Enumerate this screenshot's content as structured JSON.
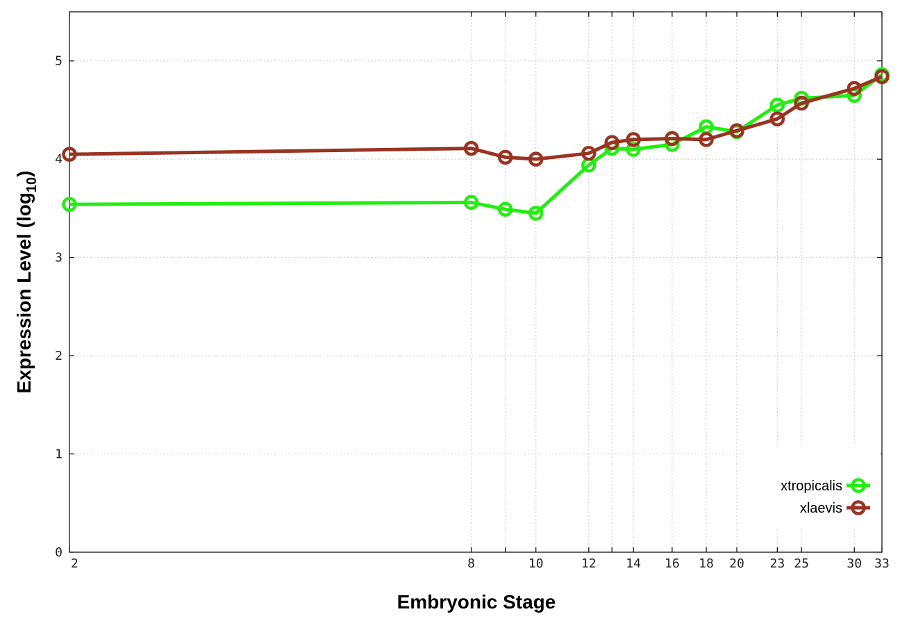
{
  "chart_data": {
    "type": "line",
    "xlabel": "Embryonic Stage",
    "ylabel_main": "Expression Level (log",
    "ylabel_sub": "10",
    "ylabel_close": ")",
    "x_ticks": [
      "2",
      "8",
      "9",
      "10",
      "12",
      "13",
      "14",
      "16",
      "18",
      "20",
      "23",
      "25",
      "30",
      "33"
    ],
    "x_tick_labels_shown": [
      "2",
      "8",
      "10",
      "12",
      "14",
      "16",
      "18",
      "20",
      "23",
      "25",
      "30",
      "33"
    ],
    "y_ticks": [
      "0",
      "1",
      "2",
      "3",
      "4",
      "5"
    ],
    "ylim": [
      0,
      5.5
    ],
    "grid": true,
    "legend_position": "bottom-right",
    "series": [
      {
        "name": "xtropicalis",
        "color": "#22ee11",
        "values": [
          3.54,
          3.56,
          3.49,
          3.45,
          3.94,
          4.11,
          4.1,
          4.15,
          4.33,
          4.28,
          4.55,
          4.62,
          4.65,
          4.86
        ]
      },
      {
        "name": "xlaevis",
        "color": "#993322",
        "values": [
          4.05,
          4.11,
          4.02,
          4.0,
          4.06,
          4.17,
          4.2,
          4.21,
          4.2,
          4.29,
          4.41,
          4.57,
          4.72,
          4.84
        ]
      }
    ]
  }
}
